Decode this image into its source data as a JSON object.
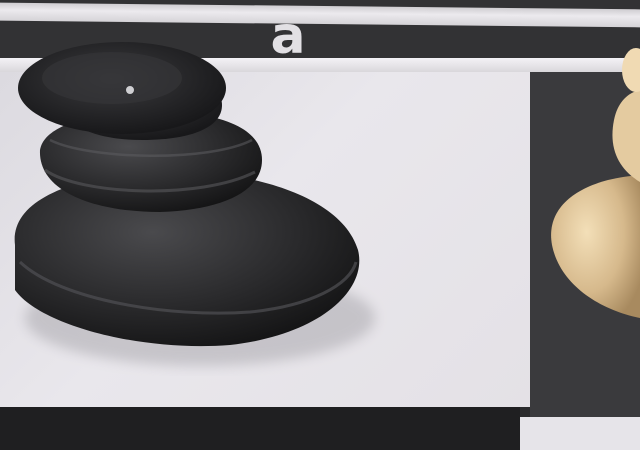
{
  "board": {
    "file_label": "a"
  },
  "colors": {
    "dark_square": "#2b2b2d",
    "light_square": "#e4e1e6",
    "black_pawn": "#2a2a2c",
    "white_pawn": "#d6b98c"
  },
  "pieces": [
    {
      "name": "black-pawn-icon"
    },
    {
      "name": "white-pawn-icon"
    }
  ]
}
